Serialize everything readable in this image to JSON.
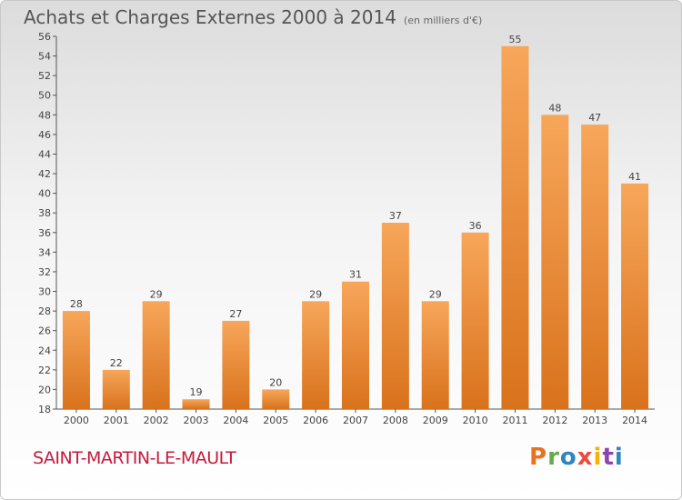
{
  "header": {
    "title": "Achats et Charges Externes 2000 à 2014",
    "subtitle": "(en milliers d'€)"
  },
  "footer": {
    "commune": "SAINT-MARTIN-LE-MAULT",
    "logo": "Proxiti"
  },
  "colors": {
    "bar_light": "#f7a65a",
    "bar_dark": "#d9721c",
    "axis": "#555555",
    "commune": "#c8193c"
  },
  "chart_data": {
    "type": "bar",
    "title": "Achats et Charges Externes 2000 à 2014",
    "subtitle": "(en milliers d'€)",
    "categories": [
      "2000",
      "2001",
      "2002",
      "2003",
      "2004",
      "2005",
      "2006",
      "2007",
      "2008",
      "2009",
      "2010",
      "2011",
      "2012",
      "2013",
      "2014"
    ],
    "values": [
      28,
      22,
      29,
      19,
      27,
      20,
      29,
      31,
      37,
      29,
      36,
      55,
      48,
      47,
      41
    ],
    "ylim": [
      18,
      56
    ],
    "yticks": [
      18,
      20,
      22,
      24,
      26,
      28,
      30,
      32,
      34,
      36,
      38,
      40,
      42,
      44,
      46,
      48,
      50,
      52,
      54,
      56
    ],
    "grid": false,
    "data_labels": true
  }
}
